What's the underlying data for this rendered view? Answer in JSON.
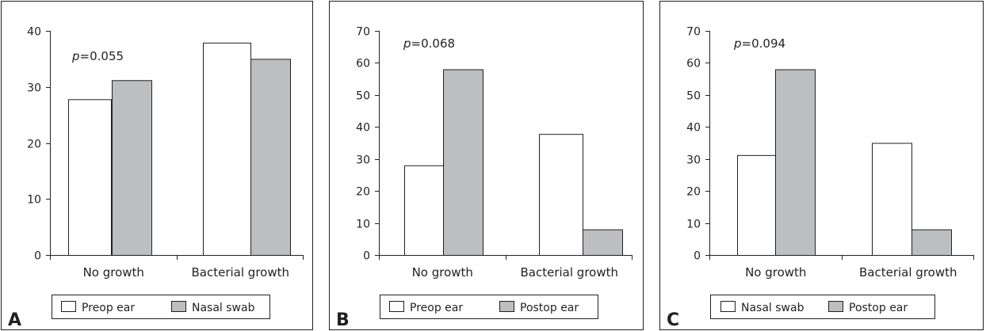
{
  "chart_data": [
    {
      "type": "bar",
      "panel_label": "A",
      "annotation": {
        "p": "p",
        "value": "=0.055"
      },
      "categories": [
        "No growth",
        "Bacterial growth"
      ],
      "ylim": [
        0,
        40
      ],
      "yticks": [
        "0",
        "10",
        "20",
        "30",
        "40"
      ],
      "series": [
        {
          "name": "Preop ear",
          "fill": "#ffffff",
          "values": [
            27.8,
            37.9
          ]
        },
        {
          "name": "Nasal swab",
          "fill": "#bcbec0",
          "values": [
            31.2,
            35.0
          ]
        }
      ]
    },
    {
      "type": "bar",
      "panel_label": "B",
      "annotation": {
        "p": "p",
        "value": "=0.068"
      },
      "categories": [
        "No growth",
        "Bacterial growth"
      ],
      "ylim": [
        0,
        70
      ],
      "yticks": [
        "0",
        "10",
        "20",
        "30",
        "40",
        "50",
        "60",
        "70"
      ],
      "series": [
        {
          "name": "Preop ear",
          "fill": "#ffffff",
          "values": [
            28,
            37.8
          ]
        },
        {
          "name": "Postop ear",
          "fill": "#bcbec0",
          "values": [
            58,
            8
          ]
        }
      ]
    },
    {
      "type": "bar",
      "panel_label": "C",
      "annotation": {
        "p": "p",
        "value": "=0.094"
      },
      "categories": [
        "No growth",
        "Bacterial growth"
      ],
      "ylim": [
        0,
        70
      ],
      "yticks": [
        "0",
        "10",
        "20",
        "30",
        "40",
        "50",
        "60",
        "70"
      ],
      "series": [
        {
          "name": "Nasal swab",
          "fill": "#ffffff",
          "values": [
            31.2,
            35
          ]
        },
        {
          "name": "Postop ear",
          "fill": "#bcbec0",
          "values": [
            58,
            8
          ]
        }
      ]
    }
  ]
}
